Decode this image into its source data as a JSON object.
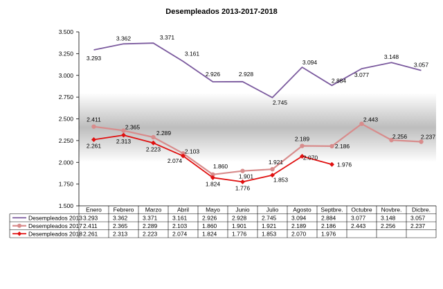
{
  "chart_data": {
    "type": "line",
    "title": "Desempleados 2013-2017-2018",
    "categories": [
      "Enero",
      "Febrero",
      "Marzo",
      "Abril",
      "Mayo",
      "Junio",
      "Julio",
      "Agosto",
      "Septbre.",
      "Octubre",
      "Novbre.",
      "Dicbre."
    ],
    "ylim": [
      1500,
      3500
    ],
    "yticks": [
      1500,
      1750,
      2000,
      2250,
      2500,
      2750,
      3000,
      3250,
      3500
    ],
    "ytick_labels": [
      "1.500",
      "1.750",
      "2.000",
      "2.250",
      "2.500",
      "2.750",
      "3.000",
      "3.250",
      "3.500"
    ],
    "legend_placement": "data-table-left",
    "series": [
      {
        "name": "Desempleados 2013",
        "color": "#7b5a9e",
        "marker": "none",
        "values": [
          3293,
          3362,
          3371,
          3161,
          2926,
          2928,
          2745,
          3094,
          2884,
          3077,
          3148,
          3057
        ],
        "labels": [
          "3.293",
          "3.362",
          "3.371",
          "3.161",
          "2.926",
          "2.928",
          "2.745",
          "3.094",
          "2.884",
          "3.077",
          "3.148",
          "3.057"
        ]
      },
      {
        "name": "Desempleados 2017",
        "color": "#d88c8c",
        "marker": "circle",
        "values": [
          2411,
          2365,
          2289,
          2103,
          1860,
          1901,
          1921,
          2189,
          2186,
          2443,
          2256,
          2237
        ],
        "labels": [
          "2.411",
          "2.365",
          "2.289",
          "2.103",
          "1.860",
          "1.901",
          "1.921",
          "2.189",
          "2.186",
          "2.443",
          "2.256",
          "2.237"
        ]
      },
      {
        "name": "Desempleados 2018",
        "color": "#e01010",
        "marker": "diamond",
        "values": [
          2261,
          2313,
          2223,
          2074,
          1824,
          1776,
          1853,
          2070,
          1976,
          null,
          null,
          null
        ],
        "labels": [
          "2.261",
          "2.313",
          "2.223",
          "2.074",
          "1.824",
          "1.776",
          "1.853",
          "2.070",
          "1.976",
          "",
          "",
          ""
        ]
      }
    ]
  }
}
